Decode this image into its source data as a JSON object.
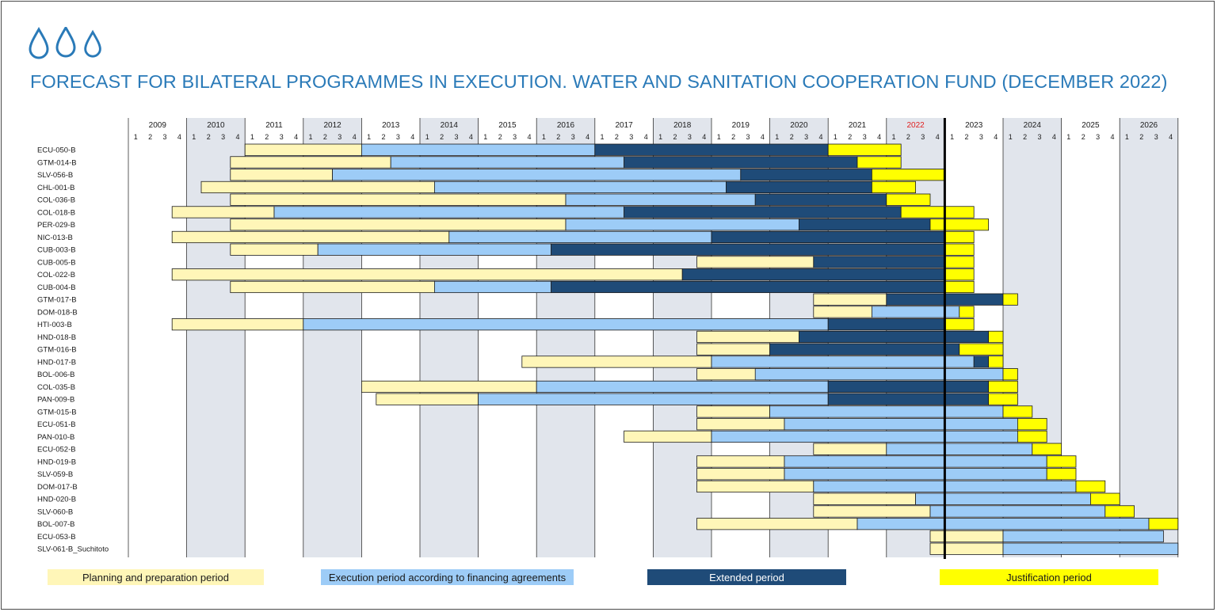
{
  "title": "FORECAST FOR BILATERAL PROGRAMMES IN EXECUTION. WATER AND SANITATION COOPERATION FUND (DECEMBER 2022)",
  "icons": [
    "water-drop-icon",
    "water-drop-icon",
    "water-drop-icon"
  ],
  "colors": {
    "accent": "#2a7ab8",
    "planning": "#fff6b8",
    "execution": "#9dccf7",
    "extended": "#1f4b78",
    "justification": "#ffff00",
    "shaded_year": "#e1e5ec",
    "highlight_year": "#e02020"
  },
  "legend": [
    {
      "key": "planning",
      "label": "Planning and preparation period"
    },
    {
      "key": "execution",
      "label": "Execution period according to financing agreements"
    },
    {
      "key": "extended",
      "label": "Extended period"
    },
    {
      "key": "justification",
      "label": "Justification period"
    }
  ],
  "chart_data": {
    "type": "gantt",
    "time_unit": "quarter",
    "years": [
      "2009",
      "2010",
      "2011",
      "2012",
      "2013",
      "2014",
      "2015",
      "2016",
      "2017",
      "2018",
      "2019",
      "2020",
      "2021",
      "2022",
      "2023",
      "2024",
      "2025",
      "2026"
    ],
    "quarters": [
      "1",
      "2",
      "3",
      "4"
    ],
    "highlight_year": "2022",
    "current_marker": "2022-Q4",
    "rows": [
      {
        "label": "ECU-050-B",
        "segments": [
          [
            "planning",
            "2011-Q1",
            "2012-Q4"
          ],
          [
            "execution",
            "2013-Q1",
            "2016-Q4"
          ],
          [
            "extended",
            "2017-Q1",
            "2020-Q4"
          ],
          [
            "justification",
            "2021-Q1",
            "2022-Q1"
          ]
        ]
      },
      {
        "label": "GTM-014-B",
        "segments": [
          [
            "planning",
            "2010-Q4",
            "2013-Q2"
          ],
          [
            "execution",
            "2013-Q3",
            "2017-Q2"
          ],
          [
            "extended",
            "2017-Q3",
            "2021-Q2"
          ],
          [
            "justification",
            "2021-Q3",
            "2022-Q1"
          ]
        ]
      },
      {
        "label": "SLV-056-B",
        "segments": [
          [
            "planning",
            "2010-Q4",
            "2012-Q2"
          ],
          [
            "execution",
            "2012-Q3",
            "2019-Q2"
          ],
          [
            "extended",
            "2019-Q3",
            "2021-Q3"
          ],
          [
            "justification",
            "2021-Q4",
            "2022-Q4"
          ]
        ]
      },
      {
        "label": "CHL-001-B",
        "segments": [
          [
            "planning",
            "2010-Q2",
            "2014-Q1"
          ],
          [
            "execution",
            "2014-Q2",
            "2019-Q1"
          ],
          [
            "extended",
            "2019-Q2",
            "2021-Q3"
          ],
          [
            "justification",
            "2021-Q4",
            "2022-Q2"
          ]
        ]
      },
      {
        "label": "COL-036-B",
        "segments": [
          [
            "planning",
            "2010-Q4",
            "2016-Q2"
          ],
          [
            "execution",
            "2016-Q3",
            "2019-Q3"
          ],
          [
            "extended",
            "2019-Q4",
            "2021-Q4"
          ],
          [
            "justification",
            "2022-Q1",
            "2022-Q3"
          ]
        ]
      },
      {
        "label": "COL-018-B",
        "segments": [
          [
            "planning",
            "2009-Q4",
            "2011-Q2"
          ],
          [
            "execution",
            "2011-Q3",
            "2017-Q2"
          ],
          [
            "extended",
            "2017-Q3",
            "2022-Q1"
          ],
          [
            "justification",
            "2022-Q2",
            "2023-Q2"
          ]
        ]
      },
      {
        "label": "PER-029-B",
        "segments": [
          [
            "planning",
            "2010-Q4",
            "2016-Q2"
          ],
          [
            "execution",
            "2016-Q3",
            "2020-Q2"
          ],
          [
            "extended",
            "2020-Q3",
            "2022-Q3"
          ],
          [
            "justification",
            "2022-Q4",
            "2023-Q3"
          ]
        ]
      },
      {
        "label": "NIC-013-B",
        "segments": [
          [
            "planning",
            "2009-Q4",
            "2014-Q2"
          ],
          [
            "execution",
            "2014-Q3",
            "2018-Q4"
          ],
          [
            "extended",
            "2019-Q1",
            "2022-Q4"
          ],
          [
            "justification",
            "2023-Q1",
            "2023-Q2"
          ]
        ]
      },
      {
        "label": "CUB-003-B",
        "segments": [
          [
            "planning",
            "2010-Q4",
            "2012-Q1"
          ],
          [
            "execution",
            "2012-Q2",
            "2016-Q1"
          ],
          [
            "extended",
            "2016-Q2",
            "2022-Q4"
          ],
          [
            "justification",
            "2023-Q1",
            "2023-Q2"
          ]
        ]
      },
      {
        "label": "CUB-005-B",
        "segments": [
          [
            "planning",
            "2018-Q4",
            "2020-Q3"
          ],
          [
            "extended",
            "2020-Q4",
            "2022-Q4"
          ],
          [
            "justification",
            "2023-Q1",
            "2023-Q2"
          ]
        ]
      },
      {
        "label": "COL-022-B",
        "segments": [
          [
            "planning",
            "2009-Q4",
            "2018-Q2"
          ],
          [
            "extended",
            "2018-Q3",
            "2022-Q4"
          ],
          [
            "justification",
            "2023-Q1",
            "2023-Q2"
          ]
        ]
      },
      {
        "label": "CUB-004-B",
        "segments": [
          [
            "planning",
            "2010-Q4",
            "2014-Q1"
          ],
          [
            "execution",
            "2014-Q2",
            "2016-Q1"
          ],
          [
            "extended",
            "2016-Q2",
            "2022-Q4"
          ],
          [
            "justification",
            "2023-Q1",
            "2023-Q2"
          ]
        ]
      },
      {
        "label": "GTM-017-B",
        "segments": [
          [
            "planning",
            "2020-Q4",
            "2021-Q4"
          ],
          [
            "extended",
            "2022-Q1",
            "2023-Q4"
          ],
          [
            "justification",
            "2024-Q1",
            "2024-Q1"
          ]
        ]
      },
      {
        "label": "DOM-018-B",
        "segments": [
          [
            "planning",
            "2020-Q4",
            "2021-Q3"
          ],
          [
            "execution",
            "2021-Q4",
            "2023-Q1"
          ],
          [
            "justification",
            "2023-Q2",
            "2023-Q2"
          ]
        ]
      },
      {
        "label": "HTI-003-B",
        "segments": [
          [
            "planning",
            "2009-Q4",
            "2011-Q4"
          ],
          [
            "execution",
            "2012-Q1",
            "2020-Q4"
          ],
          [
            "extended",
            "2021-Q1",
            "2022-Q4"
          ],
          [
            "justification",
            "2023-Q1",
            "2023-Q2"
          ]
        ]
      },
      {
        "label": "HND-018-B",
        "segments": [
          [
            "planning",
            "2018-Q4",
            "2020-Q2"
          ],
          [
            "extended",
            "2020-Q3",
            "2023-Q3"
          ],
          [
            "justification",
            "2023-Q4",
            "2023-Q4"
          ]
        ]
      },
      {
        "label": "GTM-016-B",
        "segments": [
          [
            "planning",
            "2018-Q4",
            "2019-Q4"
          ],
          [
            "extended",
            "2020-Q1",
            "2023-Q1"
          ],
          [
            "justification",
            "2023-Q2",
            "2023-Q4"
          ]
        ]
      },
      {
        "label": "HND-017-B",
        "segments": [
          [
            "planning",
            "2015-Q4",
            "2018-Q4"
          ],
          [
            "execution",
            "2019-Q1",
            "2023-Q2"
          ],
          [
            "extended",
            "2023-Q3",
            "2023-Q3"
          ],
          [
            "justification",
            "2023-Q4",
            "2023-Q4"
          ]
        ]
      },
      {
        "label": "BOL-006-B",
        "segments": [
          [
            "planning",
            "2018-Q4",
            "2019-Q4"
          ],
          [
            "execution",
            "2019-Q4",
            "2023-Q4"
          ],
          [
            "justification",
            "2024-Q1",
            "2024-Q1"
          ]
        ]
      },
      {
        "label": "COL-035-B",
        "segments": [
          [
            "planning",
            "2013-Q1",
            "2015-Q4"
          ],
          [
            "execution",
            "2016-Q1",
            "2020-Q4"
          ],
          [
            "extended",
            "2021-Q1",
            "2023-Q3"
          ],
          [
            "justification",
            "2023-Q4",
            "2024-Q1"
          ]
        ]
      },
      {
        "label": "PAN-009-B",
        "segments": [
          [
            "planning",
            "2013-Q2",
            "2014-Q4"
          ],
          [
            "execution",
            "2015-Q1",
            "2020-Q4"
          ],
          [
            "extended",
            "2021-Q1",
            "2023-Q3"
          ],
          [
            "justification",
            "2023-Q4",
            "2024-Q1"
          ]
        ]
      },
      {
        "label": "GTM-015-B",
        "segments": [
          [
            "planning",
            "2018-Q4",
            "2019-Q4"
          ],
          [
            "execution",
            "2020-Q1",
            "2023-Q4"
          ],
          [
            "justification",
            "2024-Q1",
            "2024-Q2"
          ]
        ]
      },
      {
        "label": "ECU-051-B",
        "segments": [
          [
            "planning",
            "2018-Q4",
            "2020-Q1"
          ],
          [
            "execution",
            "2020-Q2",
            "2024-Q1"
          ],
          [
            "justification",
            "2024-Q2",
            "2024-Q3"
          ]
        ]
      },
      {
        "label": "PAN-010-B",
        "segments": [
          [
            "planning",
            "2017-Q3",
            "2018-Q4"
          ],
          [
            "execution",
            "2019-Q1",
            "2024-Q1"
          ],
          [
            "justification",
            "2024-Q2",
            "2024-Q3"
          ]
        ]
      },
      {
        "label": "ECU-052-B",
        "segments": [
          [
            "planning",
            "2020-Q4",
            "2021-Q4"
          ],
          [
            "execution",
            "2022-Q1",
            "2024-Q2"
          ],
          [
            "justification",
            "2024-Q3",
            "2024-Q4"
          ]
        ]
      },
      {
        "label": "HND-019-B",
        "segments": [
          [
            "planning",
            "2018-Q4",
            "2020-Q1"
          ],
          [
            "execution",
            "2020-Q2",
            "2024-Q3"
          ],
          [
            "justification",
            "2024-Q4",
            "2025-Q1"
          ]
        ]
      },
      {
        "label": "SLV-059-B",
        "segments": [
          [
            "planning",
            "2018-Q4",
            "2020-Q1"
          ],
          [
            "execution",
            "2020-Q2",
            "2024-Q3"
          ],
          [
            "justification",
            "2024-Q4",
            "2025-Q1"
          ]
        ]
      },
      {
        "label": "DOM-017-B",
        "segments": [
          [
            "planning",
            "2018-Q4",
            "2020-Q3"
          ],
          [
            "execution",
            "2020-Q4",
            "2025-Q1"
          ],
          [
            "justification",
            "2025-Q2",
            "2025-Q3"
          ]
        ]
      },
      {
        "label": "HND-020-B",
        "segments": [
          [
            "planning",
            "2020-Q4",
            "2022-Q2"
          ],
          [
            "execution",
            "2022-Q3",
            "2025-Q2"
          ],
          [
            "justification",
            "2025-Q3",
            "2025-Q4"
          ]
        ]
      },
      {
        "label": "SLV-060-B",
        "segments": [
          [
            "planning",
            "2020-Q4",
            "2022-Q3"
          ],
          [
            "execution",
            "2022-Q4",
            "2025-Q3"
          ],
          [
            "justification",
            "2025-Q4",
            "2026-Q1"
          ]
        ]
      },
      {
        "label": "BOL-007-B",
        "segments": [
          [
            "planning",
            "2018-Q4",
            "2021-Q2"
          ],
          [
            "execution",
            "2021-Q3",
            "2026-Q2"
          ],
          [
            "justification",
            "2026-Q3",
            "2026-Q4"
          ]
        ]
      },
      {
        "label": "ECU-053-B",
        "segments": [
          [
            "planning",
            "2022-Q4",
            "2023-Q4"
          ],
          [
            "execution",
            "2024-Q1",
            "2026-Q3"
          ]
        ]
      },
      {
        "label": "SLV-061-B_Suchitoto",
        "segments": [
          [
            "planning",
            "2022-Q4",
            "2023-Q4"
          ],
          [
            "execution",
            "2024-Q1",
            "2026-Q4"
          ]
        ]
      }
    ]
  }
}
